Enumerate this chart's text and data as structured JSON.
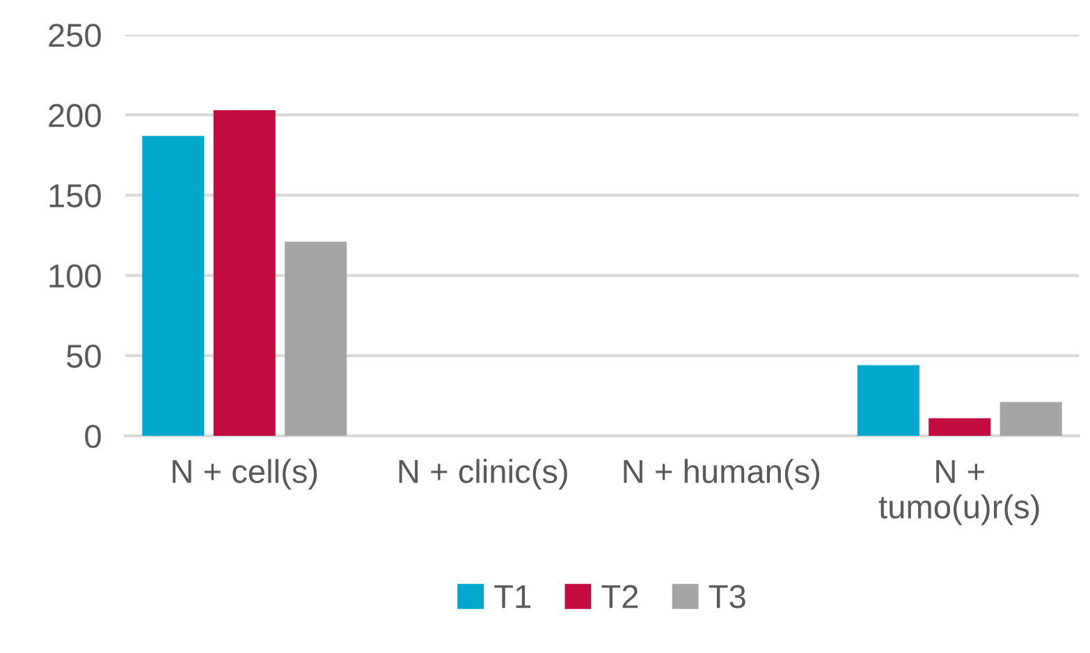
{
  "chart_data": {
    "type": "bar",
    "categories": [
      "N + cell(s)",
      "N + clinic(s)",
      "N + human(s)",
      "N +\ntumo(u)r(s)"
    ],
    "series": [
      {
        "name": "T1",
        "color": "#00a9cb",
        "values": [
          187,
          0,
          0,
          44
        ]
      },
      {
        "name": "T2",
        "color": "#c20c40",
        "values": [
          203,
          0,
          0,
          11
        ]
      },
      {
        "name": "T3",
        "color": "#a5a5a5",
        "values": [
          121,
          0,
          0,
          21
        ]
      }
    ],
    "ylim": [
      0,
      250
    ],
    "yticks": [
      0,
      50,
      100,
      150,
      200,
      250
    ],
    "grid": "y",
    "legend": "bottom"
  }
}
